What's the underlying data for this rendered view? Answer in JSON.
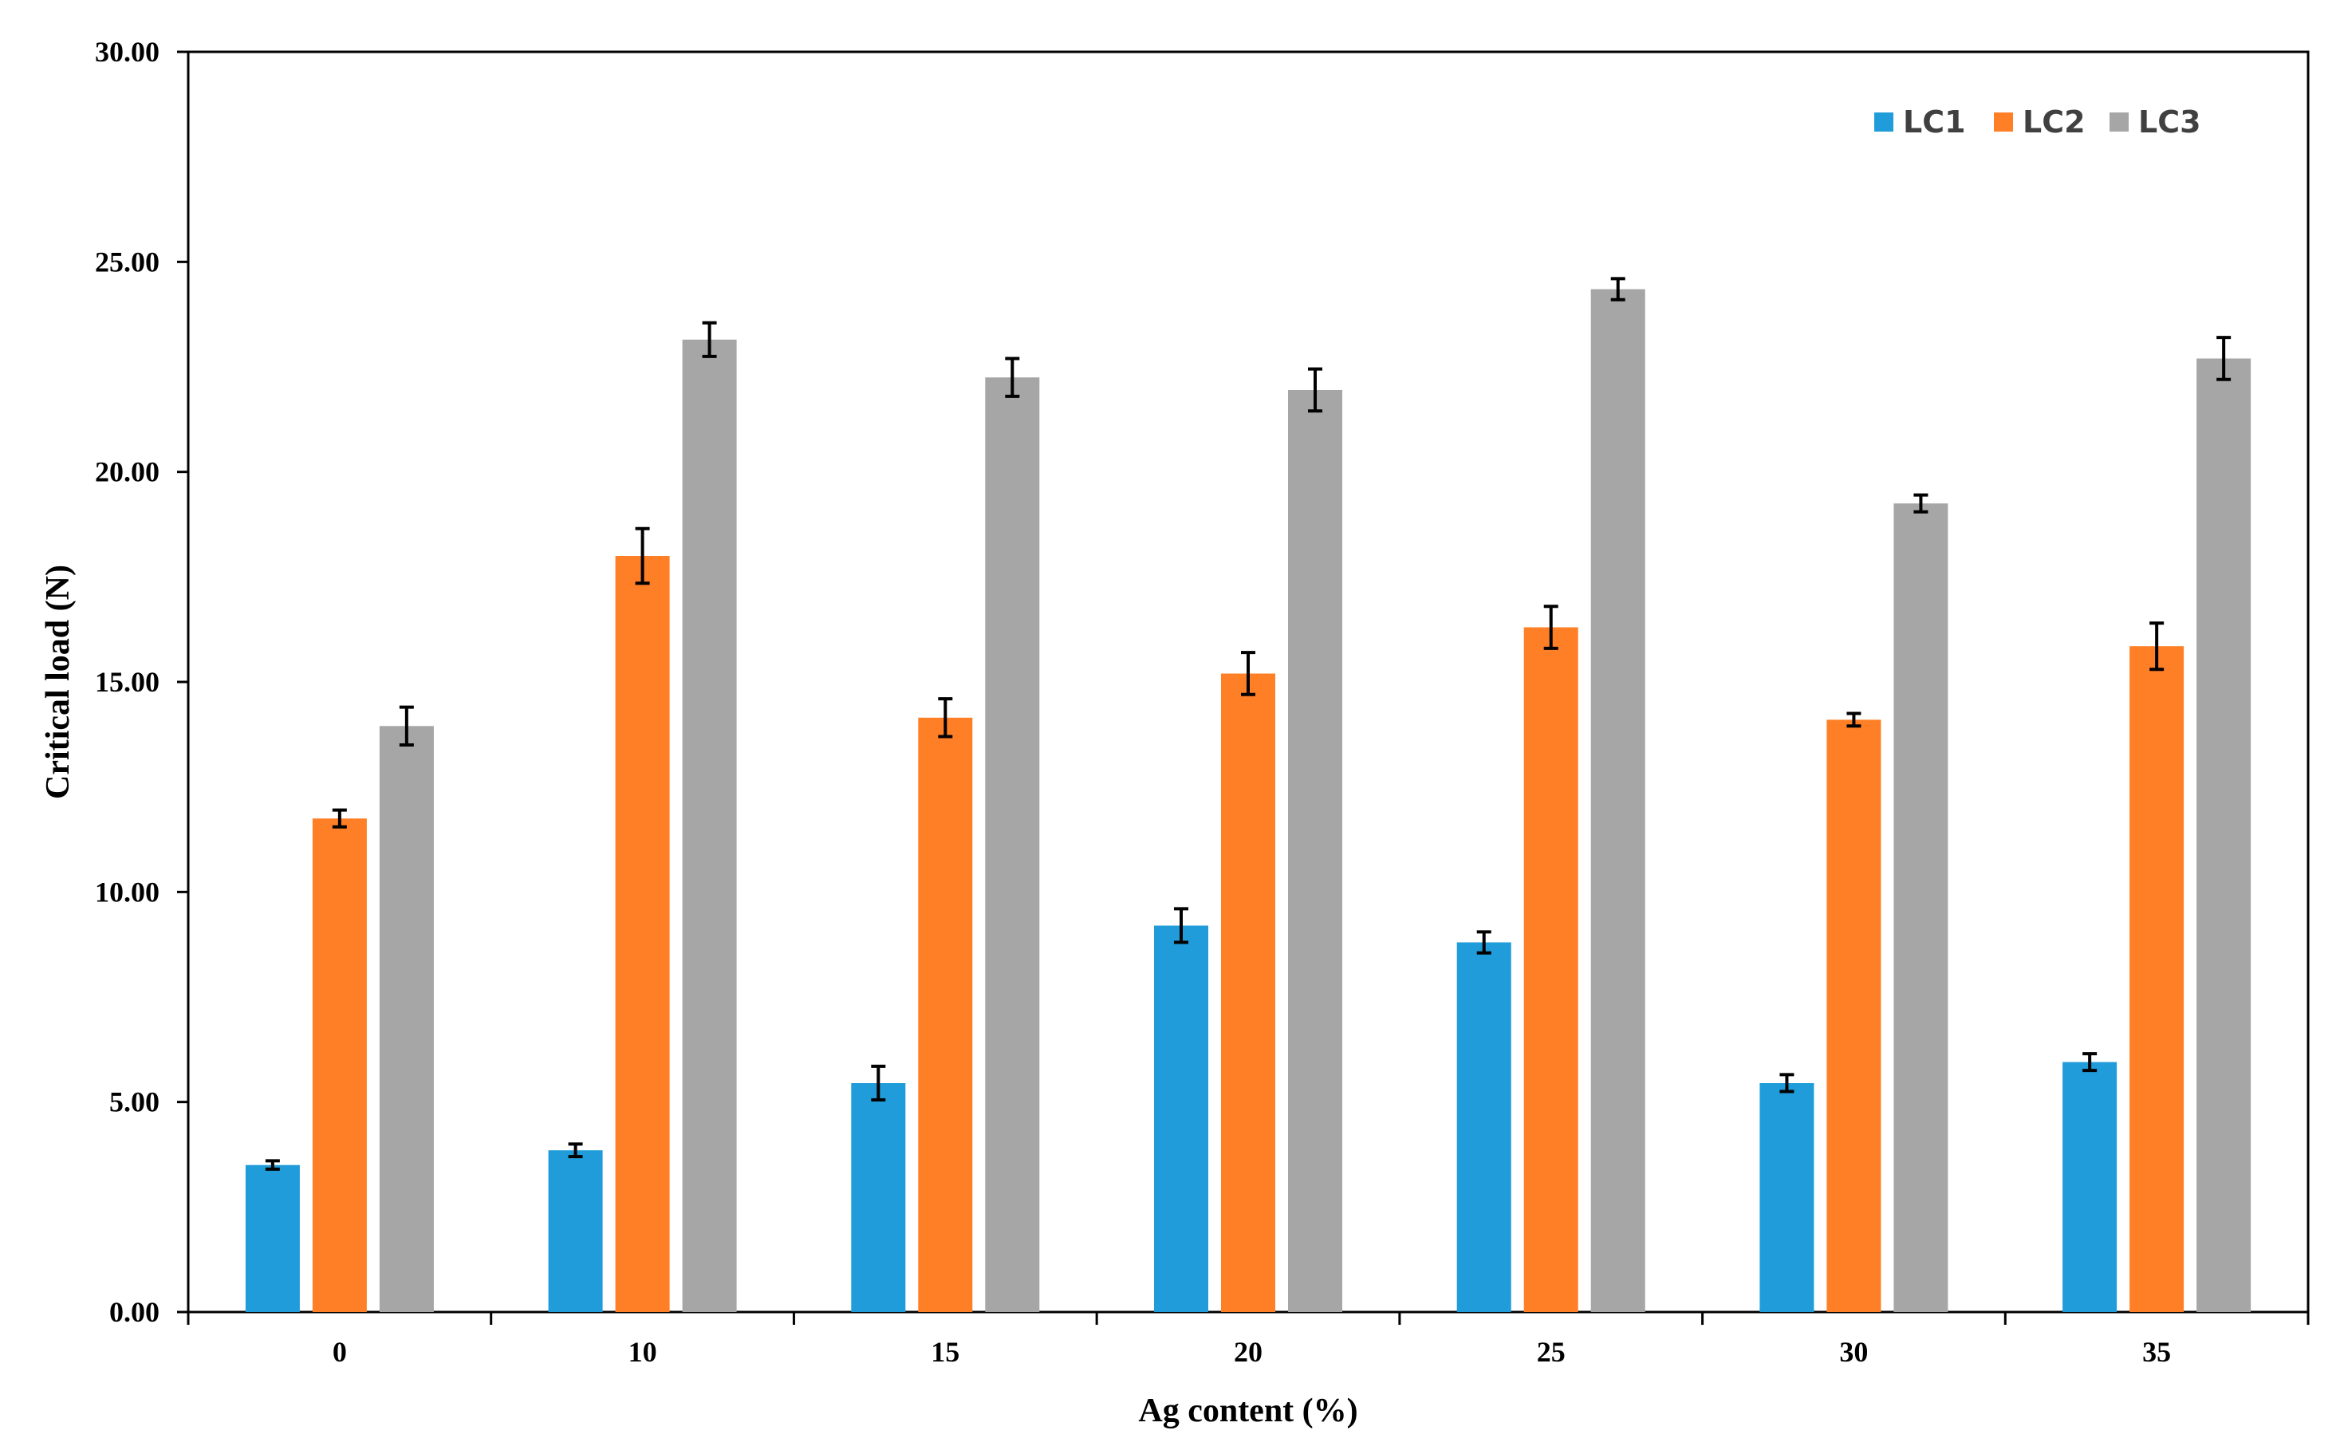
{
  "chart_data": {
    "type": "bar",
    "title": "",
    "xlabel": "Ag content (%)",
    "ylabel": "Critical load (N)",
    "categories": [
      "0",
      "10",
      "15",
      "20",
      "25",
      "30",
      "35"
    ],
    "ylim": [
      0,
      30
    ],
    "yticks": [
      0,
      5,
      10,
      15,
      20,
      25,
      30
    ],
    "ytick_labels": [
      "0.00",
      "5.00",
      "10.00",
      "15.00",
      "20.00",
      "25.00",
      "30.00"
    ],
    "legend_position": "top-right",
    "grid": false,
    "error_bars": true,
    "series": [
      {
        "name": "LC1",
        "color": "#1F9CD9",
        "values": [
          3.5,
          3.85,
          5.45,
          9.2,
          8.8,
          5.45,
          5.95
        ],
        "errors": [
          0.1,
          0.15,
          0.4,
          0.4,
          0.25,
          0.2,
          0.2
        ]
      },
      {
        "name": "LC2",
        "color": "#FF7F27",
        "values": [
          11.75,
          18.0,
          14.15,
          15.2,
          16.3,
          14.1,
          15.85
        ],
        "errors": [
          0.2,
          0.65,
          0.45,
          0.5,
          0.5,
          0.15,
          0.55
        ]
      },
      {
        "name": "LC3",
        "color": "#A6A6A6",
        "values": [
          13.95,
          23.15,
          22.25,
          21.95,
          24.35,
          19.25,
          22.7
        ],
        "errors": [
          0.45,
          0.4,
          0.45,
          0.5,
          0.25,
          0.2,
          0.5
        ]
      }
    ]
  }
}
